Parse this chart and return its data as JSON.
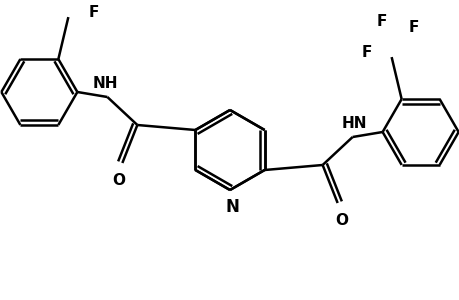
{
  "background_color": "#ffffff",
  "bond_color": "#000000",
  "bond_width": 1.8,
  "font_size": 10,
  "fig_width": 4.6,
  "fig_height": 3.0,
  "dpi": 100,
  "xlim": [
    0,
    460
  ],
  "ylim": [
    0,
    300
  ]
}
